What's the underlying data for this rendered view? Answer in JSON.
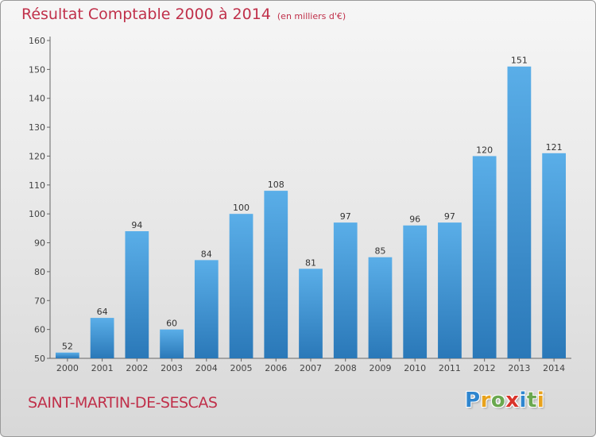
{
  "header": {
    "title": "Résultat Comptable 2000 à 2014",
    "subtitle": "(en milliers d'€)"
  },
  "footer": {
    "commune": "SAINT-MARTIN-DE-SESCAS",
    "logo_letters": [
      "P",
      "r",
      "o",
      "x",
      "i",
      "t",
      "i"
    ],
    "logo_colors": [
      "#2f86cf",
      "#e8a21c",
      "#6aa84f",
      "#d9342b",
      "#2f86cf",
      "#6aa84f",
      "#e8a21c"
    ]
  },
  "chart_data": {
    "type": "bar",
    "title": "Résultat Comptable 2000 à 2014",
    "subtitle": "(en milliers d'€)",
    "xlabel": "",
    "ylabel": "",
    "categories": [
      "2000",
      "2001",
      "2002",
      "2003",
      "2004",
      "2005",
      "2006",
      "2007",
      "2008",
      "2009",
      "2010",
      "2011",
      "2012",
      "2013",
      "2014"
    ],
    "values": [
      52,
      64,
      94,
      60,
      84,
      100,
      108,
      81,
      97,
      85,
      96,
      97,
      120,
      151,
      121
    ],
    "ylim": [
      50,
      160
    ],
    "yticks": [
      50,
      60,
      70,
      80,
      90,
      100,
      110,
      120,
      130,
      140,
      150,
      160
    ],
    "grid": false,
    "legend": "none",
    "bar_color_top": "#5aaee8",
    "bar_color_bottom": "#2a78b8"
  }
}
